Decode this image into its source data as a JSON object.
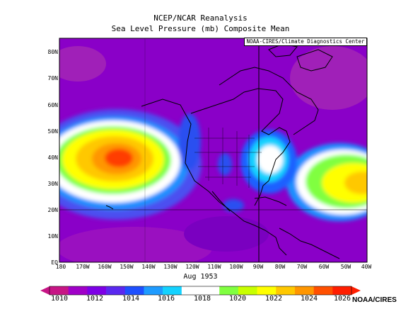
{
  "titles": {
    "line1": "NCEP/NCAR Reanalysis",
    "line2": "Sea Level Pressure (mb) Composite Mean"
  },
  "credit": "NOAA-CIRES/Climate Diagnostics Center",
  "period": "Aug 1953",
  "org": "NOAA/CIRES",
  "lat_labels": [
    "80N",
    "70N",
    "60N",
    "50N",
    "40N",
    "30N",
    "20N",
    "10N",
    "EQ"
  ],
  "lon_labels": [
    "180",
    "170W",
    "160W",
    "150W",
    "140W",
    "130W",
    "120W",
    "110W",
    "100W",
    "90W",
    "80W",
    "70W",
    "60W",
    "50W",
    "40W"
  ],
  "colorbar": {
    "labels": [
      "1010",
      "1012",
      "1014",
      "1016",
      "1018",
      "1020",
      "1022",
      "1024",
      "1026"
    ],
    "colors": [
      "#c71585",
      "#a000c8",
      "#7d00e6",
      "#5a28f0",
      "#1e50ff",
      "#1e9bff",
      "#14d2ff",
      "#ffffff",
      "#ffffff",
      "#80ff40",
      "#c8ff00",
      "#ffff00",
      "#ffc800",
      "#ff9600",
      "#ff5000",
      "#ff1e00"
    ]
  },
  "colors": {
    "background": "#8a00c8",
    "land_outline": "#000000"
  }
}
